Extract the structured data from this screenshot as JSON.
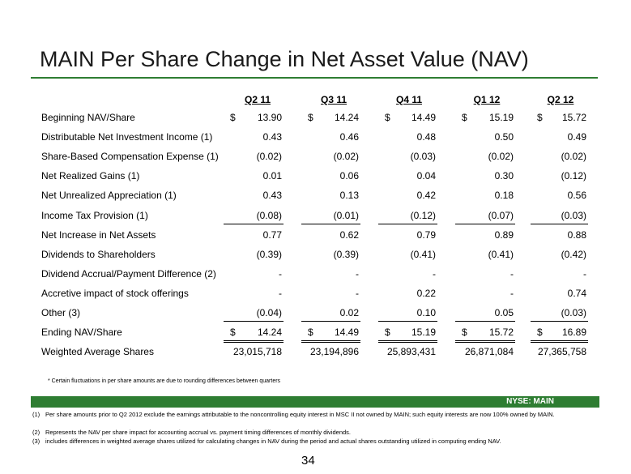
{
  "title": "MAIN Per Share Change in Net Asset Value (NAV)",
  "columns": [
    "Q2 11",
    "Q3 11",
    "Q4 11",
    "Q1 12",
    "Q2 12"
  ],
  "rows": [
    {
      "label": "Beginning NAV/Share",
      "values": [
        "13.90",
        "14.24",
        "14.49",
        "15.19",
        "15.72"
      ]
    },
    {
      "label": "Distributable Net Investment Income (1)",
      "values": [
        "0.43",
        "0.46",
        "0.48",
        "0.50",
        "0.49"
      ]
    },
    {
      "label": "Share-Based Compensation Expense (1)",
      "values": [
        "(0.02)",
        "(0.02)",
        "(0.03)",
        "(0.02)",
        "(0.02)"
      ]
    },
    {
      "label": "Net Realized Gains (1)",
      "values": [
        "0.01",
        "0.06",
        "0.04",
        "0.30",
        "(0.12)"
      ]
    },
    {
      "label": "Net Unrealized Appreciation (1)",
      "values": [
        "0.43",
        "0.13",
        "0.42",
        "0.18",
        "0.56"
      ]
    },
    {
      "label": "Income Tax Provision (1)",
      "values": [
        "(0.08)",
        "(0.01)",
        "(0.12)",
        "(0.07)",
        "(0.03)"
      ]
    },
    {
      "label": "Net Increase in Net Assets",
      "values": [
        "0.77",
        "0.62",
        "0.79",
        "0.89",
        "0.88"
      ]
    },
    {
      "label": "Dividends to Shareholders",
      "values": [
        "(0.39)",
        "(0.39)",
        "(0.41)",
        "(0.41)",
        "(0.42)"
      ]
    },
    {
      "label": "Dividend Accrual/Payment Difference (2)",
      "values": [
        "-",
        "-",
        "-",
        "-",
        "-"
      ]
    },
    {
      "label": "Accretive impact of stock offerings",
      "values": [
        "-",
        "-",
        "0.22",
        "-",
        "0.74"
      ]
    },
    {
      "label": "Other (3)",
      "values": [
        "(0.04)",
        "0.02",
        "0.10",
        "0.05",
        "(0.03)"
      ]
    },
    {
      "label": "Ending NAV/Share",
      "values": [
        "14.24",
        "14.49",
        "15.19",
        "15.72",
        "16.89"
      ]
    },
    {
      "label": "Weighted Average Shares",
      "values": [
        "23,015,718",
        "23,194,896",
        "25,893,431",
        "26,871,084",
        "27,365,758"
      ]
    }
  ],
  "currency_symbol": "$",
  "rounding_note": "* Certain fluctuations in per share amounts are due to rounding differences between quarters",
  "ticker": "NYSE:  MAIN",
  "footnotes": [
    {
      "num": "(1)",
      "text": "Per share amounts prior to Q2 2012 exclude the earnings attributable to the noncontrolling equity interest in MSC II not owned by MAIN; such equity interests are now 100% owned by MAIN."
    },
    {
      "num": "(2)",
      "text": "Represents the NAV per share impact for accounting accrual vs. payment timing differences of monthly dividends."
    },
    {
      "num": "(3)",
      "text": "includes differences in weighted average shares utilized for calculating changes in NAV during the period and actual shares outstanding utilized in computing ending NAV."
    }
  ],
  "page_number": "34",
  "colors": {
    "accent": "#2e7d32"
  }
}
